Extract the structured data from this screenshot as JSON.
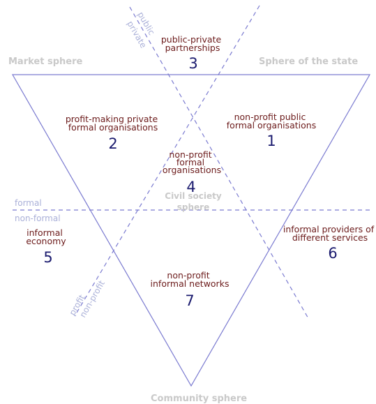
{
  "spheres": {
    "market": "Market sphere",
    "state": "Sphere of the state",
    "community": "Community sphere",
    "civil_line1": "Civil society",
    "civil_line2": "sphere"
  },
  "dividers": {
    "public": "public",
    "private": "private",
    "formal": "formal",
    "non_formal": "non-formal",
    "profit": "profit",
    "non_profit": "non-profit"
  },
  "sectors": [
    {
      "number": "1",
      "lines": [
        "non-profit public",
        "formal organisations"
      ]
    },
    {
      "number": "2",
      "lines": [
        "profit-making private",
        "formal organisations"
      ]
    },
    {
      "number": "3",
      "lines": [
        "public-private",
        "partnerships"
      ]
    },
    {
      "number": "4",
      "lines": [
        "non-profit",
        "formal",
        "organisations"
      ]
    },
    {
      "number": "5",
      "lines": [
        "informal",
        "economy"
      ]
    },
    {
      "number": "6",
      "lines": [
        "informal providers of",
        "different services"
      ]
    },
    {
      "number": "7",
      "lines": [
        "non-profit",
        "informal networks"
      ]
    }
  ],
  "colors": {
    "lines": "#7a7ad0",
    "sphere_labels": "#c9c9c9",
    "sector_text": "#6b1a1a",
    "numbers": "#1a1a6e",
    "divider_labels": "#aab0d8"
  }
}
